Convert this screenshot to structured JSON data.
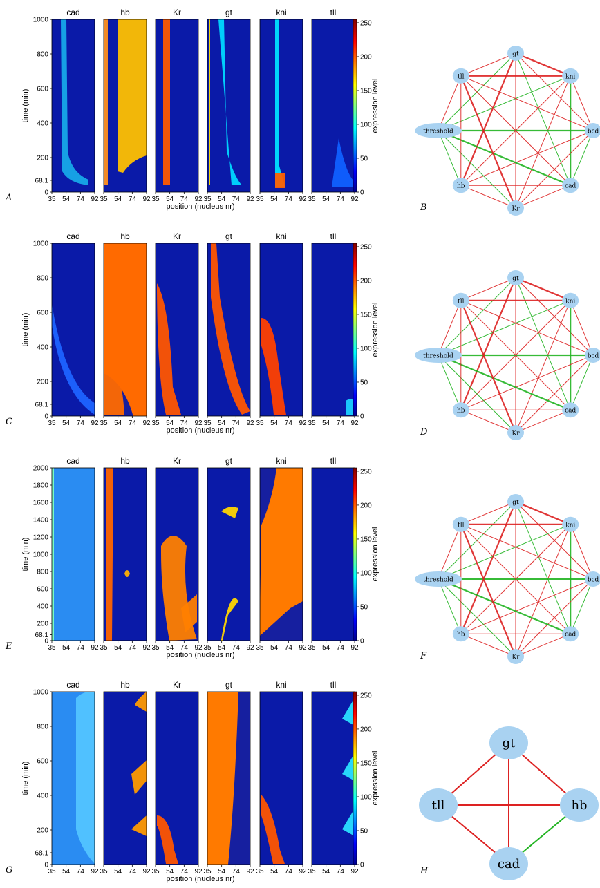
{
  "figure": {
    "heatmap_panels": [
      {
        "label": "A",
        "genes": [
          "cad",
          "hb",
          "Kr",
          "gt",
          "kni",
          "tll"
        ],
        "y_ticks": [
          "0",
          "68.1",
          "200",
          "400",
          "600",
          "800",
          "1000"
        ],
        "y_tick_values": [
          0,
          68.1,
          200,
          400,
          600,
          800,
          1000
        ],
        "y_max": 1000,
        "x_ticks": [
          "35",
          "54",
          "74",
          "92"
        ]
      },
      {
        "label": "C",
        "genes": [
          "cad",
          "hb",
          "Kr",
          "gt",
          "kni",
          "tll"
        ],
        "y_ticks": [
          "0",
          "68.1",
          "200",
          "400",
          "600",
          "800",
          "1000"
        ],
        "y_tick_values": [
          0,
          68.1,
          200,
          400,
          600,
          800,
          1000
        ],
        "y_max": 1000,
        "x_ticks": [
          "35",
          "54",
          "74",
          "92"
        ]
      },
      {
        "label": "E",
        "genes": [
          "cad",
          "hb",
          "Kr",
          "gt",
          "kni",
          "tll"
        ],
        "y_ticks": [
          "0",
          "68.1",
          "200",
          "400",
          "600",
          "800",
          "1000",
          "1200",
          "1400",
          "1600",
          "1800",
          "2000"
        ],
        "y_tick_values": [
          0,
          68.1,
          200,
          400,
          600,
          800,
          1000,
          1200,
          1400,
          1600,
          1800,
          2000
        ],
        "y_max": 2000,
        "x_ticks": [
          "35",
          "54",
          "74",
          "92"
        ]
      },
      {
        "label": "G",
        "genes": [
          "cad",
          "hb",
          "Kr",
          "gt",
          "kni",
          "tll"
        ],
        "y_ticks": [
          "0",
          "68.1",
          "200",
          "400",
          "600",
          "800",
          "1000"
        ],
        "y_tick_values": [
          0,
          68.1,
          200,
          400,
          600,
          800,
          1000
        ],
        "y_max": 1000,
        "x_ticks": [
          "35",
          "54",
          "74",
          "92"
        ]
      }
    ],
    "y_axis_label": "time (min)",
    "x_axis_label": "position (nucleus nr)",
    "colorbar": {
      "label": "expression level",
      "ticks": [
        "0",
        "50",
        "100",
        "150",
        "200",
        "250"
      ],
      "tick_values": [
        0,
        50,
        100,
        150,
        200,
        250
      ],
      "max": 255
    },
    "network_panels": [
      {
        "label": "B",
        "nodes": [
          "gt",
          "kni",
          "bcd",
          "cad",
          "Kr",
          "hb",
          "threshold",
          "tll"
        ]
      },
      {
        "label": "D",
        "nodes": [
          "gt",
          "kni",
          "bcd",
          "cad",
          "Kr",
          "hb",
          "threshold",
          "tll"
        ]
      },
      {
        "label": "F",
        "nodes": [
          "gt",
          "kni",
          "bcd",
          "cad",
          "Kr",
          "hb",
          "threshold",
          "tll"
        ]
      },
      {
        "label": "H",
        "nodes": [
          "gt",
          "hb",
          "cad",
          "tll"
        ]
      }
    ],
    "colors": {
      "activation": "#22b422",
      "repression": "#dd2222",
      "node_fill": "#a9d2f1",
      "heat_low": "#00008f",
      "heat_high": "#800000"
    }
  }
}
